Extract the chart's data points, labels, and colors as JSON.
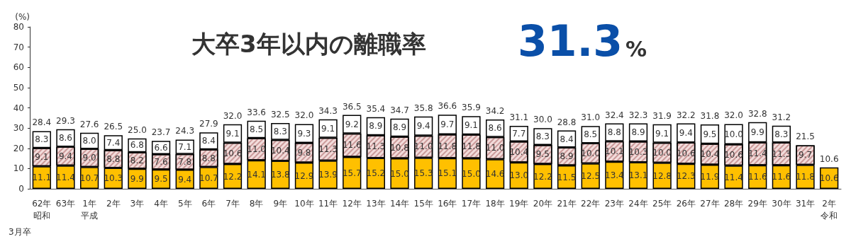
{
  "chart_data": {
    "type": "bar",
    "stacked": true,
    "title": "大卒3年以内の離職率",
    "ylabel": "(%)",
    "annotations": [
      "31.3%",
      "3月卒"
    ],
    "categories": [
      "62年昭和",
      "63年",
      "1年平成",
      "2年",
      "3年",
      "4年",
      "5年",
      "6年",
      "7年",
      "8年",
      "9年",
      "10年",
      "11年",
      "12年",
      "13年",
      "14年",
      "15年",
      "16年",
      "17年",
      "18年",
      "19年",
      "20年",
      "21年",
      "22年",
      "23年",
      "24年",
      "25年",
      "26年",
      "27年",
      "28年",
      "29年",
      "30年",
      "31年",
      "2年令和"
    ],
    "series": [
      {
        "color": "#ffc000",
        "values": [
          11.1,
          11.4,
          10.7,
          10.3,
          9.9,
          9.5,
          9.4,
          10.7,
          12.2,
          14.1,
          13.8,
          12.9,
          13.9,
          15.7,
          15.2,
          15.0,
          15.3,
          15.1,
          15.0,
          14.6,
          13.0,
          12.2,
          11.5,
          12.5,
          13.4,
          13.1,
          12.8,
          12.3,
          11.9,
          11.4,
          11.6,
          11.6,
          11.8,
          10.6
        ],
        "value_labels": [
          "11.1",
          "11.4",
          "10.7",
          "10.3",
          "9.9",
          "9.5",
          "9.4",
          "10.7",
          "12.2",
          "14.1",
          "13.8",
          "12.9",
          "13.9",
          "15.7",
          "15.2",
          "15.0",
          "15.3",
          "15.1",
          "15.0",
          "14.6",
          "13.0",
          "12.2",
          "11.5",
          "12.5",
          "13.4",
          "13.1",
          "12.8",
          "12.3",
          "11.9",
          "11.4",
          "11.6",
          "11.6",
          "11.8",
          "10.6"
        ]
      },
      {
        "color": "#f2dcdb",
        "values": [
          9.1,
          9.4,
          9.0,
          8.8,
          8.2,
          7.6,
          7.8,
          8.8,
          10.6,
          11.0,
          10.4,
          9.8,
          11.3,
          11.6,
          11.3,
          10.8,
          11.0,
          11.8,
          11.8,
          11.0,
          10.4,
          9.5,
          8.9,
          10.0,
          10.1,
          10.3,
          10.0,
          10.6,
          10.4,
          10.6,
          11.4,
          11.3,
          9.7,
          null
        ],
        "value_labels": [
          "9.1",
          "9.4",
          "9.0",
          "8.8",
          "8.2",
          "7.6",
          "7.8",
          "8.8",
          "10.6",
          "11.0",
          "10.4",
          "9.8",
          "11.3",
          "11.6",
          "11.3",
          "10.8",
          "11.0",
          "11.8",
          "11.8",
          "11.0",
          "10.4",
          "9.5",
          "8.9",
          "10.0",
          "10.1",
          "10.3",
          "10.0",
          "10.6",
          "10.4",
          "10.6",
          "11.4",
          "11.3",
          "9.7",
          null
        ]
      },
      {
        "color": "#ffffff",
        "values": [
          8.3,
          8.6,
          8.0,
          7.4,
          6.8,
          6.6,
          7.1,
          8.4,
          9.1,
          8.5,
          8.3,
          9.3,
          9.1,
          9.2,
          8.9,
          8.9,
          9.4,
          9.7,
          9.1,
          8.6,
          7.7,
          8.3,
          8.4,
          8.5,
          8.8,
          8.9,
          9.1,
          9.4,
          9.5,
          10.0,
          9.9,
          8.3,
          null,
          null
        ],
        "value_labels": [
          "8.3",
          "8.6",
          "8.0",
          "7.4",
          "6.8",
          "6.6",
          "7.1",
          "8.4",
          "9.1",
          "8.5",
          "8.3",
          "9.3",
          "9.1",
          "9.2",
          "8.9",
          "8.9",
          "9.4",
          "9.7",
          "9.1",
          "8.6",
          "7.7",
          "8.3",
          "8.4",
          "8.5",
          "8.8",
          "8.9",
          "9.1",
          "9.4",
          "9.5",
          "10.0",
          "9.9",
          "8.3",
          null,
          null
        ]
      }
    ],
    "totals": [
      "28.4",
      "29.3",
      "27.6",
      "26.5",
      "25.0",
      "23.7",
      "24.3",
      "27.9",
      "32.0",
      "33.6",
      "32.5",
      "32.0",
      "34.3",
      "36.5",
      "35.4",
      "34.7",
      "35.8",
      "36.6",
      "35.9",
      "34.2",
      "31.1",
      "30.0",
      "28.8",
      "31.0",
      "32.4",
      "32.3",
      "31.9",
      "32.2",
      "31.8",
      "32.0",
      "32.8",
      "31.2",
      "21.5",
      "10.6"
    ],
    "ylim": [
      0,
      80
    ],
    "yticks": [
      0,
      10,
      20,
      30,
      40,
      50,
      60,
      70,
      80
    ]
  }
}
